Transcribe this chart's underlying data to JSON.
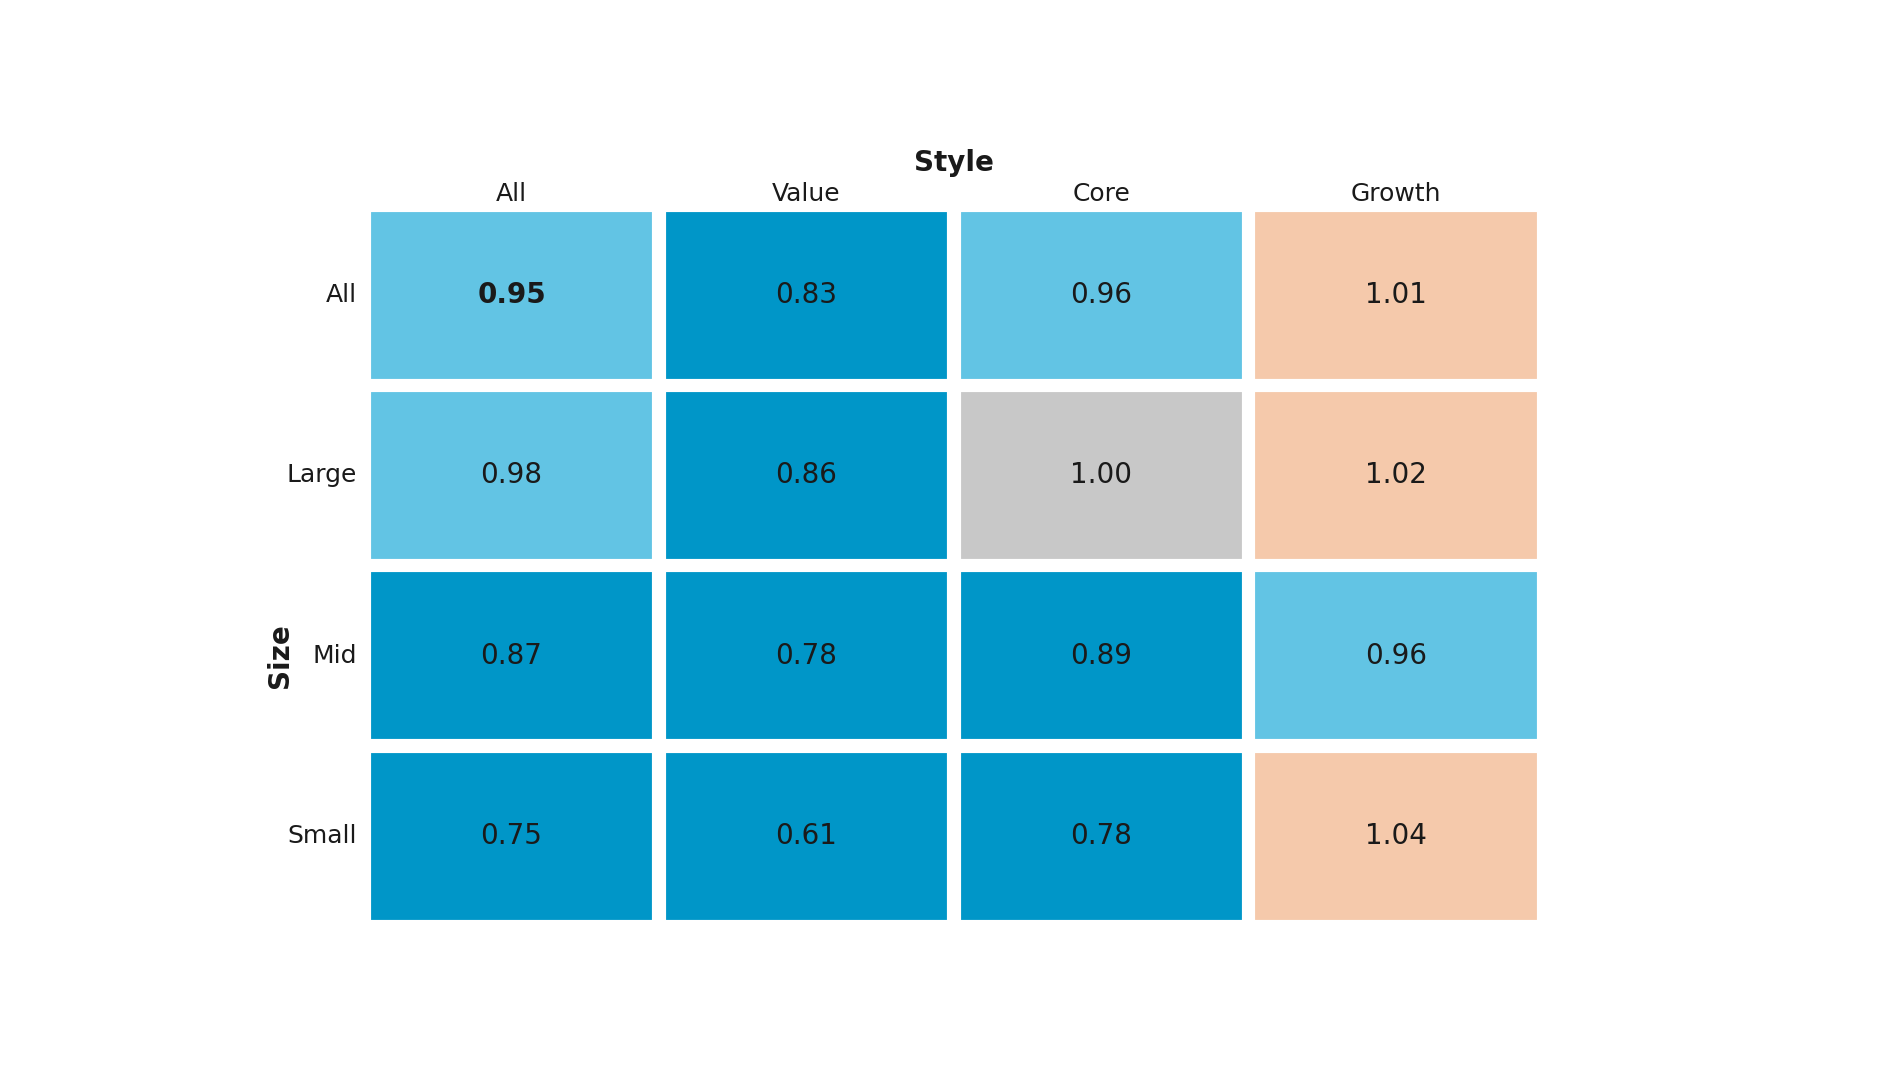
{
  "title_style": "Style",
  "title_size": "Size",
  "col_labels": [
    "All",
    "Value",
    "Core",
    "Growth"
  ],
  "row_labels": [
    "All",
    "Large",
    "Mid",
    "Small"
  ],
  "values": [
    [
      0.95,
      0.83,
      0.96,
      1.01
    ],
    [
      0.98,
      0.86,
      1.0,
      1.02
    ],
    [
      0.87,
      0.78,
      0.89,
      0.96
    ],
    [
      0.75,
      0.61,
      0.78,
      1.04
    ]
  ],
  "colors": [
    [
      "#62C4E4",
      "#0096C8",
      "#62C4E4",
      "#F5C9AB"
    ],
    [
      "#62C4E4",
      "#0096C8",
      "#C8C8C8",
      "#F5C9AB"
    ],
    [
      "#0096C8",
      "#0096C8",
      "#0096C8",
      "#62C4E4"
    ],
    [
      "#0096C8",
      "#0096C8",
      "#0096C8",
      "#F5C9AB"
    ]
  ],
  "bold_cells": [
    [
      0,
      0
    ]
  ],
  "background_color": "#FFFFFF",
  "text_color": "#1A1A1A",
  "font_size_values": 20,
  "font_size_labels": 18,
  "font_size_title": 20,
  "figsize": [
    18.96,
    10.66
  ]
}
